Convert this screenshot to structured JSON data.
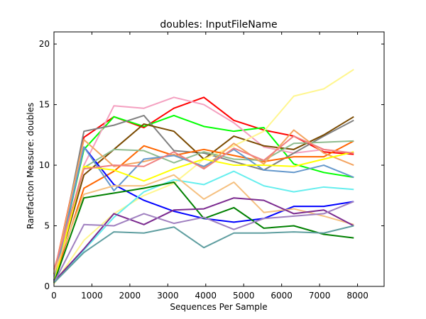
{
  "chart_data": {
    "type": "line",
    "title": "doubles: InputFileName",
    "xlabel": "Sequences Per Sample",
    "ylabel": "Rarefaction Measure: doubles",
    "xlim": [
      0,
      8700
    ],
    "ylim": [
      0,
      21
    ],
    "x_ticks": [
      0,
      1000,
      2000,
      3000,
      4000,
      5000,
      6000,
      7000,
      8000
    ],
    "y_ticks": [
      0,
      5,
      10,
      15,
      20
    ],
    "grid": false,
    "legend": "none",
    "x": [
      0,
      790,
      1580,
      2370,
      3160,
      3950,
      4740,
      5530,
      6320,
      7110,
      7900
    ],
    "series": [
      {
        "color": "#ff0000",
        "values": [
          1.0,
          12.3,
          14.0,
          13.1,
          14.7,
          15.6,
          13.7,
          12.9,
          12.4,
          11.1,
          10.9
        ]
      },
      {
        "color": "#00ff00",
        "values": [
          0.5,
          11.3,
          14.0,
          13.2,
          14.1,
          13.2,
          12.8,
          13.1,
          10.1,
          9.4,
          9.0
        ]
      },
      {
        "color": "#f4a0c0",
        "values": [
          0.8,
          10.0,
          14.9,
          14.7,
          15.6,
          15.0,
          13.5,
          11.5,
          11.0,
          11.3,
          11.0
        ]
      },
      {
        "color": "#808080",
        "values": [
          0.3,
          12.8,
          13.3,
          14.1,
          11.2,
          11.0,
          10.3,
          9.6,
          11.0,
          12.4,
          13.7
        ]
      },
      {
        "color": "#7a4a00",
        "values": [
          0.5,
          9.2,
          11.3,
          13.4,
          12.8,
          10.5,
          12.4,
          11.6,
          11.3,
          12.5,
          14.0
        ]
      },
      {
        "color": "#fff68f",
        "values": [
          0.2,
          3.8,
          6.0,
          7.5,
          8.5,
          10.5,
          11.6,
          12.8,
          15.7,
          16.3,
          17.9
        ]
      },
      {
        "color": "#ff6600",
        "values": [
          0.5,
          8.1,
          9.5,
          11.6,
          10.8,
          11.3,
          10.8,
          10.3,
          10.7,
          10.7,
          12.0
        ]
      },
      {
        "color": "#0000ff",
        "values": [
          0.5,
          11.5,
          8.4,
          7.1,
          6.2,
          5.6,
          5.3,
          5.6,
          6.6,
          6.6,
          7.0
        ]
      },
      {
        "color": "#8fbc8f",
        "values": [
          0.4,
          9.8,
          11.3,
          11.2,
          10.2,
          11.1,
          10.5,
          10.4,
          11.8,
          11.9,
          12.0
        ]
      },
      {
        "color": "#f4a460",
        "values": [
          1.0,
          12.1,
          9.9,
          10.3,
          10.9,
          9.8,
          11.8,
          10.1,
          12.9,
          11.0,
          10.0
        ]
      },
      {
        "color": "#6699cc",
        "values": [
          0.5,
          11.5,
          7.9,
          10.5,
          10.8,
          9.9,
          11.3,
          9.6,
          9.4,
          10.0,
          9.0
        ]
      },
      {
        "color": "#ffff00",
        "values": [
          0.3,
          9.9,
          9.6,
          8.7,
          9.7,
          10.5,
          10.0,
          10.0,
          9.9,
          10.5,
          11.1
        ]
      },
      {
        "color": "#f08080",
        "values": [
          1.4,
          9.7,
          10.0,
          9.9,
          11.1,
          9.7,
          11.4,
          10.4,
          12.4,
          11.3,
          11.0
        ]
      },
      {
        "color": "#66eeee",
        "values": [
          0.3,
          3.0,
          5.7,
          7.8,
          8.8,
          8.4,
          9.5,
          8.3,
          7.8,
          8.2,
          8.0
        ]
      },
      {
        "color": "#f5c080",
        "values": [
          1.1,
          7.6,
          8.3,
          8.3,
          9.2,
          7.2,
          8.6,
          6.1,
          6.4,
          5.8,
          5.1
        ]
      },
      {
        "color": "#008000",
        "values": [
          0.3,
          7.3,
          7.7,
          8.1,
          8.6,
          5.6,
          6.5,
          4.8,
          5.0,
          4.3,
          4.0
        ]
      },
      {
        "color": "#7b2a8f",
        "values": [
          0.4,
          3.1,
          6.0,
          5.1,
          6.3,
          6.4,
          7.3,
          7.1,
          6.0,
          6.3,
          5.0
        ]
      },
      {
        "color": "#a080c0",
        "values": [
          0.3,
          5.1,
          5.0,
          6.0,
          5.2,
          5.7,
          4.7,
          5.6,
          5.8,
          6.0,
          7.0
        ]
      },
      {
        "color": "#5f9ea0",
        "values": [
          0.3,
          2.8,
          4.5,
          4.4,
          4.9,
          3.2,
          4.4,
          4.4,
          4.5,
          4.4,
          5.0
        ]
      }
    ]
  }
}
